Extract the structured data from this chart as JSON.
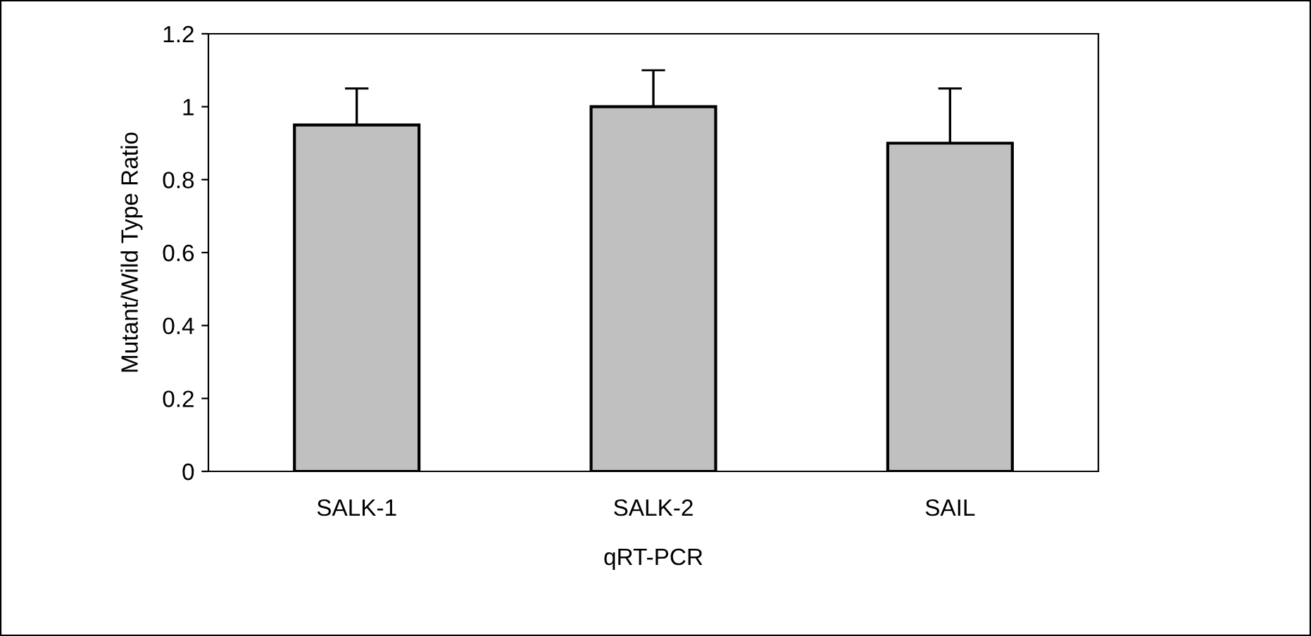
{
  "chart_data": {
    "type": "bar",
    "xlabel": "qRT-PCR",
    "ylabel": "Mutant/Wild Type Ratio",
    "categories": [
      "SALK-1",
      "SALK-2",
      "SAIL"
    ],
    "values": [
      0.95,
      1.0,
      0.9
    ],
    "errors": [
      [
        0.95,
        1.05
      ],
      [
        1.0,
        1.1
      ],
      [
        0.9,
        1.05
      ]
    ],
    "color": "#c0c0c0",
    "ylim": [
      0,
      1.2
    ],
    "yticks": [
      0,
      0.2,
      0.4,
      0.6,
      0.8,
      1,
      1.2
    ],
    "grid": false,
    "legend": false
  }
}
